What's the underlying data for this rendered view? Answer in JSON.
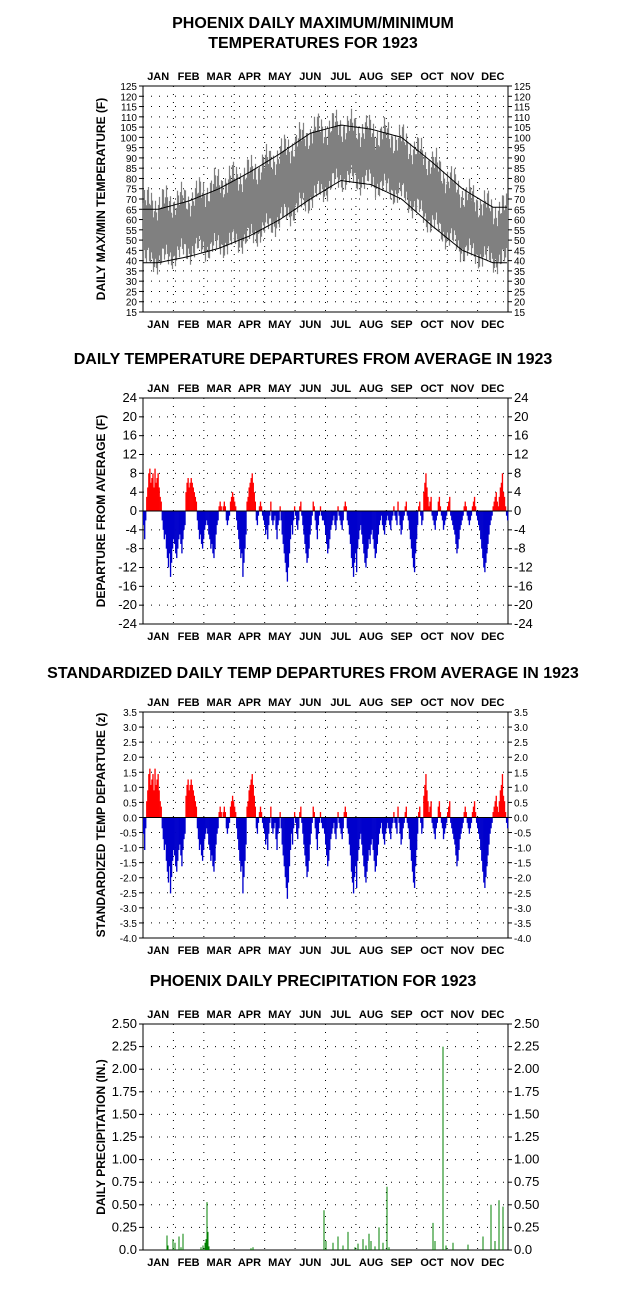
{
  "charts": {
    "temps": {
      "title_line1": "PHOENIX DAILY MAXIMUM/MINIMUM",
      "title_line2": "TEMPERATURES FOR 1923",
      "ylabel": "DAILY MAX/MIN TEMPERATURE (F)",
      "yticks": [
        "15",
        "20",
        "25",
        "30",
        "35",
        "40",
        "45",
        "50",
        "55",
        "60",
        "65",
        "70",
        "75",
        "80",
        "85",
        "90",
        "95",
        "100",
        "105",
        "110",
        "115",
        "120",
        "125"
      ]
    },
    "departures": {
      "title": "DAILY TEMPERATURE DEPARTURES FROM AVERAGE IN 1923",
      "ylabel": "DEPARTURE FROM AVERAGE (F)",
      "yticks": [
        "-24",
        "-20",
        "-16",
        "-12",
        "-8",
        "-4",
        "0",
        "4",
        "8",
        "12",
        "16",
        "20",
        "24"
      ]
    },
    "standardized": {
      "title": "STANDARDIZED DAILY TEMP DEPARTURES FROM AVERAGE IN 1923",
      "ylabel": "STANDARDIZED TEMP DEPARTURE (z)",
      "yticks": [
        "-4.0",
        "-3.5",
        "-3.0",
        "-2.5",
        "-2.0",
        "-1.5",
        "-1.0",
        "-0.5",
        "0.0",
        "0.5",
        "1.0",
        "1.5",
        "2.0",
        "2.5",
        "3.0",
        "3.5"
      ]
    },
    "precip": {
      "title": "PHOENIX DAILY PRECIPITATION FOR 1923",
      "ylabel": "DAILY PRECIPITATION (IN.)",
      "yticks": [
        "0.0",
        "0.25",
        "0.50",
        "0.75",
        "1.00",
        "1.25",
        "1.50",
        "1.75",
        "2.00",
        "2.25",
        "2.50"
      ]
    },
    "months": [
      "JAN",
      "FEB",
      "MAR",
      "APR",
      "MAY",
      "JUN",
      "JUL",
      "AUG",
      "SEP",
      "OCT",
      "NOV",
      "DEC"
    ]
  },
  "colors": {
    "observed_band": "#808080",
    "normal_lines": "#000000",
    "above_average": "#ff0000",
    "below_average": "#0000cc",
    "precip": "#008000"
  },
  "chart_data": [
    {
      "type": "area",
      "title": "PHOENIX DAILY MAXIMUM/MINIMUM TEMPERATURES FOR 1923",
      "ylabel": "DAILY MAX/MIN TEMPERATURE (F)",
      "ylim": [
        15,
        125
      ],
      "x_categories": [
        "JAN",
        "FEB",
        "MAR",
        "APR",
        "MAY",
        "JUN",
        "JUL",
        "AUG",
        "SEP",
        "OCT",
        "NOV",
        "DEC"
      ],
      "grid": true,
      "series": [
        {
          "role": "observed_max_monthly_approx",
          "values": [
            68,
            70,
            78,
            83,
            92,
            103,
            106,
            103,
            99,
            88,
            73,
            65
          ]
        },
        {
          "role": "observed_min_monthly_approx",
          "values": [
            40,
            45,
            47,
            51,
            60,
            70,
            80,
            78,
            72,
            58,
            45,
            40
          ]
        },
        {
          "role": "normal_max_monthly",
          "values": [
            65,
            69,
            75,
            83,
            92,
            102,
            106,
            104,
            100,
            88,
            75,
            66
          ]
        },
        {
          "role": "normal_min_monthly",
          "values": [
            39,
            42,
            46,
            52,
            60,
            70,
            79,
            77,
            70,
            57,
            45,
            39
          ]
        }
      ]
    },
    {
      "type": "bar",
      "title": "DAILY TEMPERATURE DEPARTURES FROM AVERAGE IN 1923",
      "ylabel": "DEPARTURE FROM AVERAGE (F)",
      "ylim": [
        -24,
        24
      ],
      "grid": true,
      "x_categories": [
        "JAN",
        "FEB",
        "MAR",
        "APR",
        "MAY",
        "JUN",
        "JUL",
        "AUG",
        "SEP",
        "OCT",
        "NOV",
        "DEC"
      ],
      "daily_values": [
        -3,
        -6,
        -2,
        3,
        5,
        8,
        9,
        6,
        7,
        8,
        5,
        9,
        6,
        7,
        8,
        5,
        3,
        2,
        -2,
        -4,
        -6,
        -5,
        -8,
        -10,
        -12,
        -9,
        -14,
        -11,
        -8,
        -6,
        -7,
        -9,
        -10,
        -8,
        -6,
        -5,
        -7,
        -9,
        -6,
        -4,
        -3,
        4,
        6,
        7,
        5,
        6,
        7,
        6,
        5,
        4,
        3,
        2,
        -2,
        -4,
        -6,
        -5,
        -7,
        -8,
        -6,
        -4,
        -3,
        -2,
        -3,
        -5,
        -6,
        -8,
        -7,
        -9,
        -10,
        -8,
        -5,
        -3,
        -2,
        1,
        2,
        1,
        0,
        1,
        2,
        1,
        -2,
        -3,
        -2,
        -1,
        2,
        3,
        4,
        3,
        2,
        1,
        -2,
        -4,
        -6,
        -8,
        -10,
        -9,
        -14,
        -11,
        -8,
        -5,
        2,
        3,
        5,
        6,
        7,
        8,
        6,
        4,
        2,
        -2,
        -3,
        -1,
        1,
        2,
        1,
        -1,
        -2,
        -3,
        -5,
        -4,
        -6,
        -3,
        -1,
        2,
        -2,
        -3,
        -2,
        -1,
        -4,
        -6,
        -3,
        -2,
        1,
        -2,
        -5,
        -7,
        -9,
        -11,
        -13,
        -15,
        -12,
        -9,
        -6,
        -3,
        -5,
        -2,
        1,
        -1,
        -3,
        -4,
        -2,
        1,
        2,
        -1,
        -3,
        -5,
        -7,
        -9,
        -11,
        -10,
        -8,
        -5,
        -3,
        -1,
        2,
        1,
        -2,
        -4,
        -6,
        -3,
        -1,
        1,
        -1,
        -2,
        -2,
        -3,
        -5,
        -7,
        -9,
        -8,
        -6,
        -4,
        -3,
        -2,
        -1,
        -3,
        -4,
        -2,
        1,
        -1,
        -2,
        -3,
        -4,
        -2,
        1,
        2,
        1,
        -2,
        -3,
        -5,
        -7,
        -10,
        -12,
        -14,
        -11,
        -9,
        -13,
        -8,
        -6,
        -4,
        -3,
        -5,
        -7,
        -9,
        -11,
        -12,
        -10,
        -8,
        -6,
        -7,
        -5,
        -4,
        -6,
        -8,
        -10,
        -9,
        -7,
        -5,
        -3,
        -2,
        -1,
        -3,
        -4,
        -5,
        -3,
        -2,
        -1,
        -2,
        -3,
        -4,
        -2,
        -1,
        1,
        -1,
        -2,
        -3,
        2,
        -1,
        -3,
        -5,
        -4,
        -2,
        -1,
        1,
        2,
        -1,
        -2,
        -4,
        -6,
        -8,
        -10,
        -12,
        -13,
        -9,
        -6,
        -3,
        1,
        2,
        -1,
        -3,
        -2,
        4,
        6,
        8,
        5,
        3,
        1,
        2,
        3,
        -1,
        -2,
        -3,
        -4,
        -2,
        -1,
        2,
        3,
        1,
        -1,
        -2,
        -4,
        -3,
        -2,
        -1,
        1,
        2,
        3,
        -1,
        -2,
        -3,
        -4,
        -5,
        -7,
        -9,
        -8,
        -6,
        -4,
        -3,
        -2,
        -1,
        1,
        2,
        1,
        -1,
        -2,
        -3,
        -2,
        -1,
        1,
        2,
        3,
        1,
        -1,
        -2,
        -3,
        -4,
        -6,
        -8,
        -10,
        -12,
        -13,
        -11,
        -9,
        -7,
        -5,
        -3,
        -2,
        -1,
        1,
        2,
        3,
        4,
        2,
        1,
        3,
        5,
        6,
        8,
        4,
        3,
        1,
        -1,
        -2
      ]
    },
    {
      "type": "bar",
      "title": "STANDARDIZED DAILY TEMP DEPARTURES FROM AVERAGE IN 1923",
      "ylabel": "STANDARDIZED TEMP DEPARTURE (z)",
      "ylim": [
        -4.0,
        3.5
      ],
      "grid": true,
      "x_categories": [
        "JAN",
        "FEB",
        "MAR",
        "APR",
        "MAY",
        "JUN",
        "JUL",
        "AUG",
        "SEP",
        "OCT",
        "NOV",
        "DEC"
      ],
      "derived_from": "departures divided by daily standard deviation"
    },
    {
      "type": "bar",
      "title": "PHOENIX DAILY PRECIPITATION FOR 1923",
      "ylabel": "DAILY PRECIPITATION (IN.)",
      "ylim": [
        0.0,
        2.5
      ],
      "grid": true,
      "x_categories": [
        "JAN",
        "FEB",
        "MAR",
        "APR",
        "MAY",
        "JUN",
        "JUL",
        "AUG",
        "SEP",
        "OCT",
        "NOV",
        "DEC"
      ],
      "events": [
        {
          "day": 24,
          "value": 0.16
        },
        {
          "day": 25,
          "value": 0.05
        },
        {
          "day": 30,
          "value": 0.12
        },
        {
          "day": 32,
          "value": 0.08
        },
        {
          "day": 36,
          "value": 0.15
        },
        {
          "day": 38,
          "value": 0.03
        },
        {
          "day": 40,
          "value": 0.18
        },
        {
          "day": 58,
          "value": 0.03
        },
        {
          "day": 60,
          "value": 0.05
        },
        {
          "day": 62,
          "value": 0.08
        },
        {
          "day": 63,
          "value": 0.12
        },
        {
          "day": 64,
          "value": 0.53
        },
        {
          "day": 65,
          "value": 0.2
        },
        {
          "day": 66,
          "value": 0.04
        },
        {
          "day": 108,
          "value": 0.02
        },
        {
          "day": 110,
          "value": 0.03
        },
        {
          "day": 181,
          "value": 0.44
        },
        {
          "day": 183,
          "value": 0.1
        },
        {
          "day": 190,
          "value": 0.08
        },
        {
          "day": 195,
          "value": 0.15
        },
        {
          "day": 200,
          "value": 0.05
        },
        {
          "day": 205,
          "value": 0.2
        },
        {
          "day": 212,
          "value": 0.03
        },
        {
          "day": 215,
          "value": 0.07
        },
        {
          "day": 220,
          "value": 0.12
        },
        {
          "day": 223,
          "value": 0.05
        },
        {
          "day": 226,
          "value": 0.18
        },
        {
          "day": 228,
          "value": 0.1
        },
        {
          "day": 232,
          "value": 0.04
        },
        {
          "day": 236,
          "value": 0.25
        },
        {
          "day": 240,
          "value": 0.08
        },
        {
          "day": 244,
          "value": 0.7
        },
        {
          "day": 246,
          "value": 0.03
        },
        {
          "day": 290,
          "value": 0.3
        },
        {
          "day": 292,
          "value": 0.1
        },
        {
          "day": 300,
          "value": 2.25
        },
        {
          "day": 303,
          "value": 0.05
        },
        {
          "day": 310,
          "value": 0.08
        },
        {
          "day": 325,
          "value": 0.06
        },
        {
          "day": 340,
          "value": 0.15
        },
        {
          "day": 348,
          "value": 0.5
        },
        {
          "day": 352,
          "value": 0.1
        },
        {
          "day": 356,
          "value": 0.55
        },
        {
          "day": 360,
          "value": 0.48
        }
      ]
    }
  ]
}
